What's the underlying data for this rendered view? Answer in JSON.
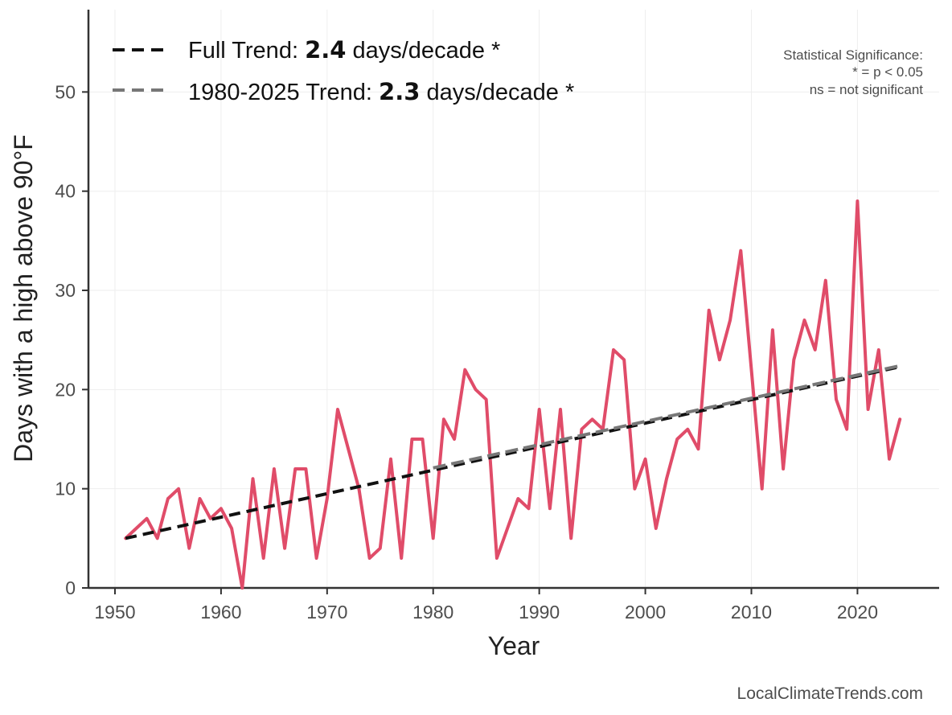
{
  "chart_data": {
    "type": "line",
    "xlabel": "Year",
    "ylabel": "Days with a high above 90°F",
    "xlim": [
      1947.5,
      2027.7
    ],
    "ylim": [
      0,
      58.3
    ],
    "xticks": [
      1950,
      1960,
      1970,
      1980,
      1990,
      2000,
      2010,
      2020
    ],
    "yticks": [
      0,
      10,
      20,
      30,
      40,
      50
    ],
    "grid": true,
    "series": [
      {
        "name": "Days above 90°F",
        "color": "#e04c69",
        "x": [
          1951,
          1952,
          1953,
          1954,
          1955,
          1956,
          1957,
          1958,
          1959,
          1960,
          1961,
          1962,
          1963,
          1964,
          1965,
          1966,
          1967,
          1968,
          1969,
          1970,
          1971,
          1972,
          1973,
          1974,
          1975,
          1976,
          1977,
          1978,
          1979,
          1980,
          1981,
          1982,
          1983,
          1984,
          1985,
          1986,
          1987,
          1988,
          1989,
          1990,
          1991,
          1992,
          1993,
          1994,
          1995,
          1996,
          1997,
          1998,
          1999,
          2000,
          2001,
          2002,
          2003,
          2004,
          2005,
          2006,
          2007,
          2008,
          2009,
          2010,
          2011,
          2012,
          2013,
          2014,
          2015,
          2016,
          2017,
          2018,
          2019,
          2020,
          2021,
          2022,
          2023,
          2024
        ],
        "values": [
          5,
          6,
          7,
          5,
          9,
          10,
          4,
          9,
          7,
          8,
          6,
          0,
          11,
          3,
          12,
          4,
          12,
          12,
          3,
          9,
          18,
          14,
          10,
          3,
          4,
          13,
          3,
          15,
          15,
          5,
          17,
          15,
          22,
          20,
          19,
          3,
          6,
          9,
          8,
          18,
          8,
          18,
          5,
          16,
          17,
          16,
          24,
          23,
          10,
          13,
          6,
          11,
          15,
          16,
          14,
          28,
          23,
          27,
          34,
          22,
          10,
          26,
          12,
          23,
          27,
          24,
          31,
          19,
          16,
          39,
          18,
          24,
          13,
          17
        ]
      }
    ],
    "trends": [
      {
        "name": "Full Trend",
        "label_prefix": "Full Trend: ",
        "value": "2.4",
        "label_suffix": " days/decade *",
        "color": "#111111",
        "x": [
          1951,
          2024
        ],
        "y": [
          5.0,
          22.3
        ]
      },
      {
        "name": "1980-2025 Trend",
        "label_prefix": "1980-2025 Trend: ",
        "value": "2.3",
        "label_suffix": " days/decade *",
        "color": "#777777",
        "x": [
          1980,
          2024
        ],
        "y": [
          12.1,
          22.4
        ]
      }
    ],
    "significance_note": [
      "Statistical Significance:",
      "* = p < 0.05",
      "ns = not significant"
    ],
    "source": "LocalClimateTrends.com"
  }
}
